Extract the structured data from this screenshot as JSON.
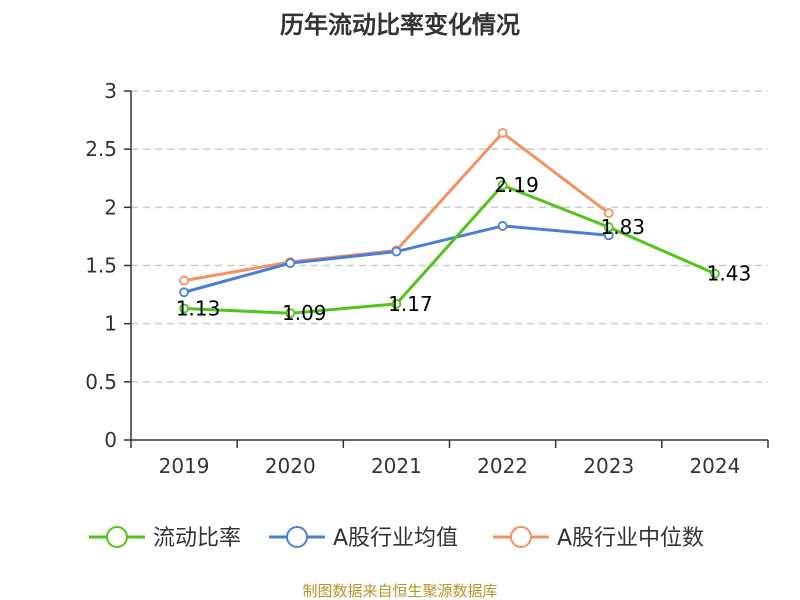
{
  "chart_data": {
    "type": "line",
    "title": "历年流动比率变化情况",
    "categories": [
      "2019",
      "2020",
      "2021",
      "2022",
      "2023",
      "2024"
    ],
    "y_ticks": [
      "0",
      "0.5",
      "1",
      "1.5",
      "2",
      "2.5",
      "3"
    ],
    "ylim": [
      0,
      3
    ],
    "grid": true,
    "legend_position": "bottom",
    "series": [
      {
        "name": "流动比率",
        "color": "#52c41a",
        "values": [
          1.13,
          1.09,
          1.17,
          2.19,
          1.83,
          1.43
        ],
        "labels": [
          "1.13",
          "1.09",
          "1.17",
          "2.19",
          "1.83",
          "1.43"
        ]
      },
      {
        "name": "A股行业均值",
        "color": "#4a7fd8",
        "values": [
          1.27,
          1.52,
          1.62,
          1.84,
          1.76,
          null
        ]
      },
      {
        "name": "A股行业中位数",
        "color": "#f59062",
        "values": [
          1.37,
          1.53,
          1.63,
          2.64,
          1.95,
          null
        ]
      }
    ],
    "source": "制图数据来自恒生聚源数据库"
  }
}
